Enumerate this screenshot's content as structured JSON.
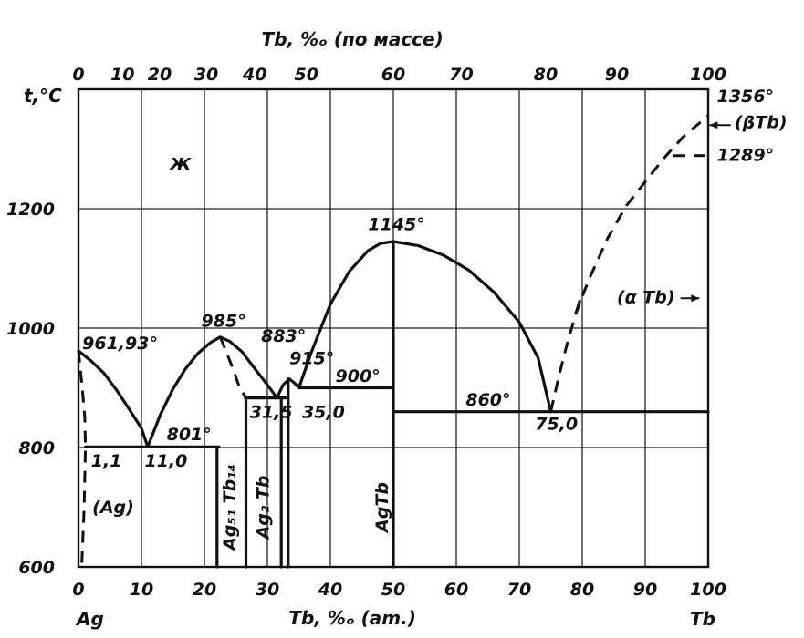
{
  "chart_data": {
    "type": "line",
    "x_bottom": {
      "label": "Tb, %ₒ (am.)",
      "range": [
        0,
        100
      ],
      "ticks": [
        "0",
        "10",
        "20",
        "30",
        "40",
        "50",
        "60",
        "70",
        "80",
        "90",
        "100"
      ],
      "end_left": "Ag",
      "end_right": "Tb"
    },
    "x_top": {
      "label": "Tb, %ₒ (по массе)",
      "ticks": [
        {
          "value": 0,
          "at": 0
        },
        {
          "value": 10,
          "at": 7.0
        },
        {
          "value": 20,
          "at": 12.9
        },
        {
          "value": 30,
          "at": 20.3
        },
        {
          "value": 40,
          "at": 28.0
        },
        {
          "value": 50,
          "at": 36.2
        },
        {
          "value": 60,
          "at": 50.0
        },
        {
          "value": 70,
          "at": 60.8
        },
        {
          "value": 80,
          "at": 74.2
        },
        {
          "value": 90,
          "at": 85.5
        },
        {
          "value": 100,
          "at": 100
        }
      ]
    },
    "y": {
      "label": "t,°C",
      "range": [
        600,
        1400
      ],
      "ticks": [
        "600",
        "800",
        "1000",
        "1200"
      ]
    },
    "grid": true,
    "solid_lines": [
      {
        "name": "liquidus-ag",
        "points": [
          [
            0,
            961.93
          ],
          [
            2,
            945
          ],
          [
            4,
            925
          ],
          [
            6,
            897
          ],
          [
            8,
            865
          ],
          [
            10,
            832
          ],
          [
            11,
            801
          ]
        ]
      },
      {
        "name": "liquidus-ag51tb14",
        "points": [
          [
            11,
            801
          ],
          [
            13,
            855
          ],
          [
            15,
            898
          ],
          [
            17,
            932
          ],
          [
            19,
            958
          ],
          [
            21,
            976
          ],
          [
            22.5,
            985
          ],
          [
            24,
            978
          ],
          [
            26,
            960
          ],
          [
            28,
            932
          ],
          [
            30,
            905
          ],
          [
            31.5,
            883
          ]
        ]
      },
      {
        "name": "liquidus-ag2tb",
        "points": [
          [
            31.5,
            883
          ],
          [
            32.5,
            905
          ],
          [
            33.5,
            915
          ],
          [
            34.3,
            908
          ],
          [
            35,
            900
          ]
        ]
      },
      {
        "name": "liquidus-agtb",
        "points": [
          [
            35,
            900
          ],
          [
            37,
            960
          ],
          [
            40,
            1040
          ],
          [
            43,
            1095
          ],
          [
            46,
            1130
          ],
          [
            48,
            1142
          ],
          [
            50,
            1145
          ],
          [
            54,
            1138
          ],
          [
            58,
            1122
          ],
          [
            62,
            1097
          ],
          [
            66,
            1060
          ],
          [
            70,
            1010
          ],
          [
            73,
            950
          ],
          [
            75,
            860
          ]
        ]
      },
      {
        "name": "liquidus-tb",
        "points": [
          [
            79.6,
            1045
          ],
          [
            79,
            1025
          ]
        ]
      },
      {
        "name": "eutectic-801",
        "points": [
          [
            1.1,
            801
          ],
          [
            22.3,
            801
          ]
        ]
      },
      {
        "name": "eutectic-883",
        "points": [
          [
            26.5,
            883
          ],
          [
            33.3,
            883
          ]
        ]
      },
      {
        "name": "eutectic-900",
        "points": [
          [
            35,
            900
          ],
          [
            50,
            900
          ]
        ]
      },
      {
        "name": "eutectic-860",
        "points": [
          [
            50,
            860
          ],
          [
            100,
            860
          ]
        ]
      },
      {
        "name": "ag51tb14-left",
        "points": [
          [
            22,
            801
          ],
          [
            22,
            600
          ]
        ]
      },
      {
        "name": "ag2tb-left",
        "points": [
          [
            26.6,
            883
          ],
          [
            26.6,
            600
          ]
        ]
      },
      {
        "name": "ag2tb-right",
        "points": [
          [
            33.3,
            915
          ],
          [
            33.3,
            600
          ]
        ]
      },
      {
        "name": "ag2tb-tie",
        "points": [
          [
            32.2,
            883
          ],
          [
            32.2,
            600
          ]
        ]
      },
      {
        "name": "agtb",
        "points": [
          [
            50,
            1145
          ],
          [
            50,
            600
          ]
        ]
      }
    ],
    "dashed_lines": [
      {
        "name": "solvus-ag",
        "points": [
          [
            0,
            961.93
          ],
          [
            0.6,
            900
          ],
          [
            1.0,
            850
          ],
          [
            1.1,
            801
          ],
          [
            0.9,
            700
          ],
          [
            0.5,
            600
          ]
        ]
      },
      {
        "name": "ag51tb14-right",
        "points": [
          [
            22.5,
            985
          ],
          [
            23.5,
            960
          ],
          [
            24.6,
            930
          ],
          [
            25.6,
            900
          ],
          [
            26.6,
            883
          ],
          [
            26.6,
            600
          ]
        ]
      },
      {
        "name": "liquidus-tb",
        "points": [
          [
            75,
            860
          ],
          [
            76.3,
            920
          ],
          [
            77.5,
            970
          ],
          [
            79,
            1025
          ],
          [
            81,
            1080
          ],
          [
            84,
            1150
          ],
          [
            87,
            1205
          ],
          [
            90,
            1245
          ],
          [
            93,
            1285
          ],
          [
            96,
            1320
          ],
          [
            100,
            1356
          ]
        ]
      },
      {
        "name": "beta-alpha-tb",
        "points": [
          [
            94.5,
            1289
          ],
          [
            100,
            1289
          ]
        ]
      }
    ],
    "annotations": [
      {
        "name": "liquid",
        "text": "Ж",
        "x": 14.5,
        "y": 1265
      },
      {
        "name": "t-ag",
        "text": "961,93°",
        "x": 0.6,
        "y": 965
      },
      {
        "name": "t-985",
        "text": "985°",
        "x": 19.5,
        "y": 1002
      },
      {
        "name": "t-883",
        "text": "883°",
        "x": 29,
        "y": 977
      },
      {
        "name": "t-915",
        "text": "915°",
        "x": 33.5,
        "y": 940
      },
      {
        "name": "t-900",
        "text": "900°",
        "x": 40.8,
        "y": 910
      },
      {
        "name": "t-801",
        "text": "801°",
        "x": 14,
        "y": 812
      },
      {
        "name": "t-1145",
        "text": "1145°",
        "x": 46,
        "y": 1164
      },
      {
        "name": "t-860",
        "text": "860°",
        "x": 61.5,
        "y": 870
      },
      {
        "name": "c-11",
        "text": "1,1",
        "x": 2,
        "y": 768
      },
      {
        "name": "c-110",
        "text": "11,0",
        "x": 10.5,
        "y": 768
      },
      {
        "name": "c-315",
        "text": "31,5",
        "x": 27.2,
        "y": 850
      },
      {
        "name": "c-350",
        "text": "35,0",
        "x": 35.5,
        "y": 850
      },
      {
        "name": "c-750",
        "text": "75,0",
        "x": 72.5,
        "y": 830
      },
      {
        "name": "t-1356",
        "text": "1356°",
        "x": 101.4,
        "y": 1379
      },
      {
        "name": "t-1289",
        "text": "1289°",
        "x": 101.4,
        "y": 1280
      },
      {
        "name": "phase-ag",
        "text": "(Ag)",
        "x": 2.2,
        "y": 690
      }
    ],
    "arrow_labels": [
      {
        "name": "beta-tb",
        "text": "(βTb)",
        "x": 104.2,
        "y": 1335,
        "arrow_to": [
          100.2,
          1340
        ],
        "from": [
          103.6,
          1340
        ]
      },
      {
        "name": "alpha-tb",
        "text": "(α Tb)",
        "x": 85.5,
        "y": 1042,
        "arrow_to": [
          98.6,
          1050
        ],
        "from": [
          95.6,
          1050
        ]
      }
    ],
    "vertical_labels": [
      {
        "name": "ag51tb14",
        "text": "Ag₅₁ Tb₁₄",
        "x": 24.9,
        "y": 700
      },
      {
        "name": "ag2tb",
        "text": "Ag₂ Tb",
        "x": 30.2,
        "y": 700
      },
      {
        "name": "agtb-compound",
        "text": "AgTb",
        "x": 49.1,
        "y": 700
      }
    ]
  }
}
